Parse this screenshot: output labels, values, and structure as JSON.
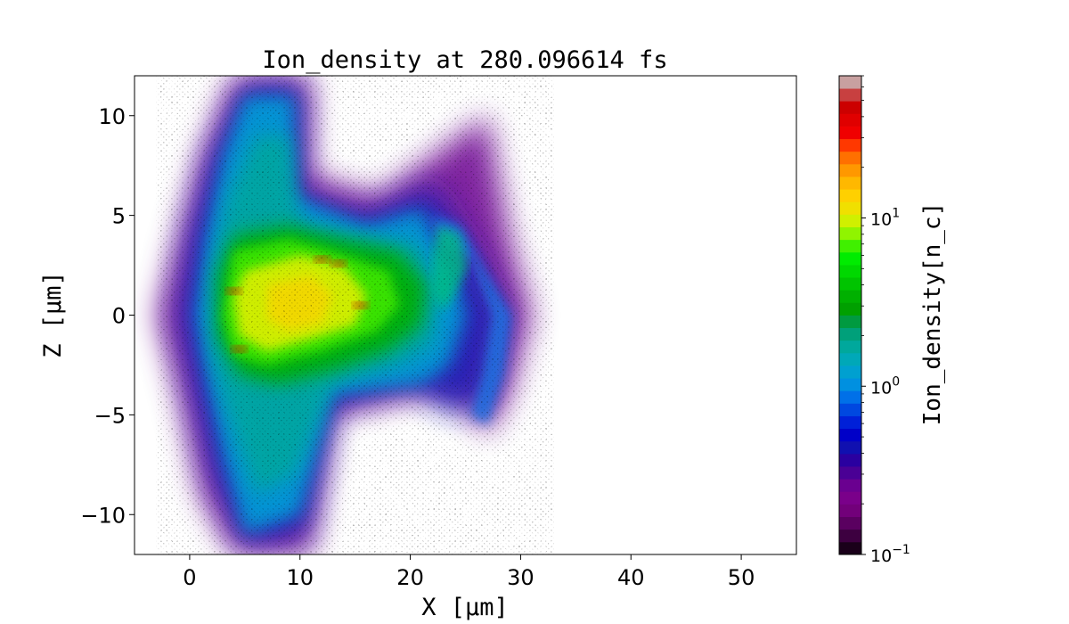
{
  "chart_data": {
    "type": "heatmap",
    "title": "Ion_density at 280.096614 fs",
    "xlabel": "X [μm]",
    "ylabel": "Z [μm]",
    "xlim": [
      -5,
      55
    ],
    "ylim": [
      -12,
      12
    ],
    "x_ticks": [
      {
        "value": 0,
        "label": "0"
      },
      {
        "value": 10,
        "label": "10"
      },
      {
        "value": 20,
        "label": "20"
      },
      {
        "value": 30,
        "label": "30"
      },
      {
        "value": 40,
        "label": "40"
      },
      {
        "value": 50,
        "label": "50"
      }
    ],
    "y_ticks": [
      {
        "value": 10,
        "label": "10"
      },
      {
        "value": 5,
        "label": "5"
      },
      {
        "value": 0,
        "label": "0"
      },
      {
        "value": -5,
        "label": "−5"
      },
      {
        "value": -10,
        "label": "−10"
      }
    ],
    "grid": false,
    "colorbar": {
      "label": "Ion_density[n_c]",
      "scale": "log",
      "range": [
        0.1,
        70
      ],
      "ticks": [
        {
          "value": 0.1,
          "base": "10",
          "exp": "−1"
        },
        {
          "value": 1,
          "base": "10",
          "exp": "0"
        },
        {
          "value": 10,
          "base": "10",
          "exp": "1"
        }
      ],
      "colors_bottom_to_top": [
        "#1a001a",
        "#3d0040",
        "#5a0060",
        "#72007a",
        "#7a008a",
        "#6a0090",
        "#4a0095",
        "#2a00a0",
        "#1010b0",
        "#0000c8",
        "#0020d8",
        "#0048e0",
        "#0070e8",
        "#0090e0",
        "#00a0d0",
        "#00a8b8",
        "#00a89c",
        "#00a07a",
        "#009a40",
        "#00a000",
        "#00b000",
        "#00c400",
        "#00d800",
        "#00ec00",
        "#40f000",
        "#90f400",
        "#d0f000",
        "#f0e000",
        "#ffd000",
        "#ffb800",
        "#ff9800",
        "#ff7000",
        "#ff3800",
        "#f00000",
        "#e00000",
        "#cc0000",
        "#c84040",
        "#c8a0a0"
      ]
    },
    "colormap": "nipy_spectral",
    "features": [
      {
        "name": "main-plasma",
        "x_range": [
          2,
          22
        ],
        "z_range": [
          -4,
          4
        ],
        "peak_n_c": 40
      },
      {
        "name": "shell",
        "x_range": [
          22,
          30
        ],
        "z_range": [
          -6,
          5
        ]
      },
      {
        "name": "vertical-plume",
        "x_range": [
          3,
          11
        ],
        "z_range": [
          -12,
          12
        ]
      }
    ]
  }
}
